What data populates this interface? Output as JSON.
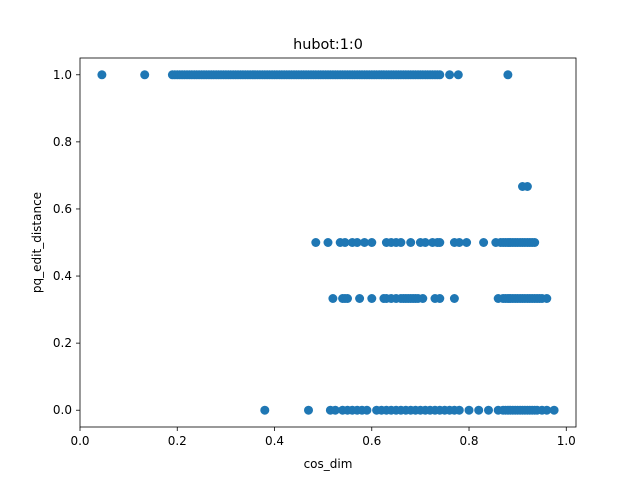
{
  "colors": {
    "marker": "#1f77b4",
    "axes": "#000000",
    "background": "#ffffff"
  },
  "chart_data": {
    "type": "scatter",
    "title": "hubot:1:0",
    "xlabel": "cos_dim",
    "ylabel": "pq_edit_distance",
    "xlim": [
      0.0,
      1.02
    ],
    "ylim": [
      -0.05,
      1.05
    ],
    "xticks": [
      0.0,
      0.2,
      0.4,
      0.6,
      0.8,
      1.0
    ],
    "xtick_labels": [
      "0.0",
      "0.2",
      "0.4",
      "0.6",
      "0.8",
      "1.0"
    ],
    "yticks": [
      0.0,
      0.2,
      0.4,
      0.6,
      0.8,
      1.0
    ],
    "ytick_labels": [
      "0.0",
      "0.2",
      "0.4",
      "0.6",
      "0.8",
      "1.0"
    ],
    "grid": false,
    "legend": "none",
    "series": [
      {
        "points": [
          [
            0.045,
            1.0
          ],
          [
            0.133,
            1.0
          ],
          [
            0.19,
            1.0
          ],
          [
            0.195,
            1.0
          ],
          [
            0.2,
            1.0
          ],
          [
            0.205,
            1.0
          ],
          [
            0.21,
            1.0
          ],
          [
            0.215,
            1.0
          ],
          [
            0.22,
            1.0
          ],
          [
            0.225,
            1.0
          ],
          [
            0.23,
            1.0
          ],
          [
            0.235,
            1.0
          ],
          [
            0.24,
            1.0
          ],
          [
            0.245,
            1.0
          ],
          [
            0.25,
            1.0
          ],
          [
            0.255,
            1.0
          ],
          [
            0.26,
            1.0
          ],
          [
            0.265,
            1.0
          ],
          [
            0.27,
            1.0
          ],
          [
            0.275,
            1.0
          ],
          [
            0.28,
            1.0
          ],
          [
            0.285,
            1.0
          ],
          [
            0.29,
            1.0
          ],
          [
            0.295,
            1.0
          ],
          [
            0.3,
            1.0
          ],
          [
            0.305,
            1.0
          ],
          [
            0.31,
            1.0
          ],
          [
            0.315,
            1.0
          ],
          [
            0.32,
            1.0
          ],
          [
            0.325,
            1.0
          ],
          [
            0.33,
            1.0
          ],
          [
            0.335,
            1.0
          ],
          [
            0.34,
            1.0
          ],
          [
            0.345,
            1.0
          ],
          [
            0.35,
            1.0
          ],
          [
            0.355,
            1.0
          ],
          [
            0.36,
            1.0
          ],
          [
            0.365,
            1.0
          ],
          [
            0.37,
            1.0
          ],
          [
            0.375,
            1.0
          ],
          [
            0.38,
            1.0
          ],
          [
            0.385,
            1.0
          ],
          [
            0.39,
            1.0
          ],
          [
            0.395,
            1.0
          ],
          [
            0.4,
            1.0
          ],
          [
            0.405,
            1.0
          ],
          [
            0.41,
            1.0
          ],
          [
            0.415,
            1.0
          ],
          [
            0.42,
            1.0
          ],
          [
            0.425,
            1.0
          ],
          [
            0.43,
            1.0
          ],
          [
            0.435,
            1.0
          ],
          [
            0.44,
            1.0
          ],
          [
            0.445,
            1.0
          ],
          [
            0.45,
            1.0
          ],
          [
            0.455,
            1.0
          ],
          [
            0.46,
            1.0
          ],
          [
            0.465,
            1.0
          ],
          [
            0.47,
            1.0
          ],
          [
            0.475,
            1.0
          ],
          [
            0.48,
            1.0
          ],
          [
            0.485,
            1.0
          ],
          [
            0.49,
            1.0
          ],
          [
            0.495,
            1.0
          ],
          [
            0.5,
            1.0
          ],
          [
            0.505,
            1.0
          ],
          [
            0.51,
            1.0
          ],
          [
            0.515,
            1.0
          ],
          [
            0.52,
            1.0
          ],
          [
            0.525,
            1.0
          ],
          [
            0.53,
            1.0
          ],
          [
            0.535,
            1.0
          ],
          [
            0.54,
            1.0
          ],
          [
            0.545,
            1.0
          ],
          [
            0.55,
            1.0
          ],
          [
            0.555,
            1.0
          ],
          [
            0.56,
            1.0
          ],
          [
            0.565,
            1.0
          ],
          [
            0.57,
            1.0
          ],
          [
            0.575,
            1.0
          ],
          [
            0.58,
            1.0
          ],
          [
            0.585,
            1.0
          ],
          [
            0.59,
            1.0
          ],
          [
            0.595,
            1.0
          ],
          [
            0.6,
            1.0
          ],
          [
            0.605,
            1.0
          ],
          [
            0.61,
            1.0
          ],
          [
            0.615,
            1.0
          ],
          [
            0.62,
            1.0
          ],
          [
            0.625,
            1.0
          ],
          [
            0.63,
            1.0
          ],
          [
            0.635,
            1.0
          ],
          [
            0.64,
            1.0
          ],
          [
            0.645,
            1.0
          ],
          [
            0.65,
            1.0
          ],
          [
            0.655,
            1.0
          ],
          [
            0.66,
            1.0
          ],
          [
            0.665,
            1.0
          ],
          [
            0.67,
            1.0
          ],
          [
            0.675,
            1.0
          ],
          [
            0.68,
            1.0
          ],
          [
            0.685,
            1.0
          ],
          [
            0.69,
            1.0
          ],
          [
            0.695,
            1.0
          ],
          [
            0.7,
            1.0
          ],
          [
            0.705,
            1.0
          ],
          [
            0.71,
            1.0
          ],
          [
            0.715,
            1.0
          ],
          [
            0.72,
            1.0
          ],
          [
            0.725,
            1.0
          ],
          [
            0.73,
            1.0
          ],
          [
            0.735,
            1.0
          ],
          [
            0.74,
            1.0
          ],
          [
            0.76,
            1.0
          ],
          [
            0.778,
            1.0
          ],
          [
            0.88,
            1.0
          ],
          [
            0.91,
            0.667
          ],
          [
            0.92,
            0.667
          ],
          [
            0.485,
            0.5
          ],
          [
            0.51,
            0.5
          ],
          [
            0.535,
            0.5
          ],
          [
            0.545,
            0.5
          ],
          [
            0.56,
            0.5
          ],
          [
            0.57,
            0.5
          ],
          [
            0.585,
            0.5
          ],
          [
            0.6,
            0.5
          ],
          [
            0.63,
            0.5
          ],
          [
            0.64,
            0.5
          ],
          [
            0.65,
            0.5
          ],
          [
            0.66,
            0.5
          ],
          [
            0.68,
            0.5
          ],
          [
            0.7,
            0.5
          ],
          [
            0.71,
            0.5
          ],
          [
            0.725,
            0.5
          ],
          [
            0.735,
            0.5
          ],
          [
            0.74,
            0.5
          ],
          [
            0.77,
            0.5
          ],
          [
            0.78,
            0.5
          ],
          [
            0.795,
            0.5
          ],
          [
            0.83,
            0.5
          ],
          [
            0.855,
            0.5
          ],
          [
            0.865,
            0.5
          ],
          [
            0.87,
            0.5
          ],
          [
            0.875,
            0.5
          ],
          [
            0.88,
            0.5
          ],
          [
            0.885,
            0.5
          ],
          [
            0.89,
            0.5
          ],
          [
            0.895,
            0.5
          ],
          [
            0.9,
            0.5
          ],
          [
            0.905,
            0.5
          ],
          [
            0.91,
            0.5
          ],
          [
            0.915,
            0.5
          ],
          [
            0.92,
            0.5
          ],
          [
            0.925,
            0.5
          ],
          [
            0.93,
            0.5
          ],
          [
            0.935,
            0.5
          ],
          [
            0.52,
            0.333
          ],
          [
            0.54,
            0.333
          ],
          [
            0.545,
            0.333
          ],
          [
            0.55,
            0.333
          ],
          [
            0.575,
            0.333
          ],
          [
            0.6,
            0.333
          ],
          [
            0.625,
            0.333
          ],
          [
            0.63,
            0.333
          ],
          [
            0.64,
            0.333
          ],
          [
            0.65,
            0.333
          ],
          [
            0.66,
            0.333
          ],
          [
            0.665,
            0.333
          ],
          [
            0.67,
            0.333
          ],
          [
            0.675,
            0.333
          ],
          [
            0.68,
            0.333
          ],
          [
            0.685,
            0.333
          ],
          [
            0.69,
            0.333
          ],
          [
            0.695,
            0.333
          ],
          [
            0.705,
            0.333
          ],
          [
            0.73,
            0.333
          ],
          [
            0.74,
            0.333
          ],
          [
            0.77,
            0.333
          ],
          [
            0.86,
            0.333
          ],
          [
            0.87,
            0.333
          ],
          [
            0.875,
            0.333
          ],
          [
            0.88,
            0.333
          ],
          [
            0.885,
            0.333
          ],
          [
            0.89,
            0.333
          ],
          [
            0.895,
            0.333
          ],
          [
            0.9,
            0.333
          ],
          [
            0.905,
            0.333
          ],
          [
            0.91,
            0.333
          ],
          [
            0.915,
            0.333
          ],
          [
            0.92,
            0.333
          ],
          [
            0.925,
            0.333
          ],
          [
            0.93,
            0.333
          ],
          [
            0.935,
            0.333
          ],
          [
            0.94,
            0.333
          ],
          [
            0.945,
            0.333
          ],
          [
            0.95,
            0.333
          ],
          [
            0.96,
            0.333
          ],
          [
            0.38,
            0.0
          ],
          [
            0.47,
            0.0
          ],
          [
            0.515,
            0.0
          ],
          [
            0.525,
            0.0
          ],
          [
            0.54,
            0.0
          ],
          [
            0.55,
            0.0
          ],
          [
            0.56,
            0.0
          ],
          [
            0.57,
            0.0
          ],
          [
            0.58,
            0.0
          ],
          [
            0.59,
            0.0
          ],
          [
            0.61,
            0.0
          ],
          [
            0.62,
            0.0
          ],
          [
            0.63,
            0.0
          ],
          [
            0.64,
            0.0
          ],
          [
            0.65,
            0.0
          ],
          [
            0.66,
            0.0
          ],
          [
            0.67,
            0.0
          ],
          [
            0.68,
            0.0
          ],
          [
            0.69,
            0.0
          ],
          [
            0.7,
            0.0
          ],
          [
            0.71,
            0.0
          ],
          [
            0.72,
            0.0
          ],
          [
            0.73,
            0.0
          ],
          [
            0.74,
            0.0
          ],
          [
            0.75,
            0.0
          ],
          [
            0.76,
            0.0
          ],
          [
            0.77,
            0.0
          ],
          [
            0.78,
            0.0
          ],
          [
            0.8,
            0.0
          ],
          [
            0.82,
            0.0
          ],
          [
            0.84,
            0.0
          ],
          [
            0.86,
            0.0
          ],
          [
            0.87,
            0.0
          ],
          [
            0.875,
            0.0
          ],
          [
            0.88,
            0.0
          ],
          [
            0.885,
            0.0
          ],
          [
            0.89,
            0.0
          ],
          [
            0.895,
            0.0
          ],
          [
            0.9,
            0.0
          ],
          [
            0.905,
            0.0
          ],
          [
            0.91,
            0.0
          ],
          [
            0.915,
            0.0
          ],
          [
            0.92,
            0.0
          ],
          [
            0.925,
            0.0
          ],
          [
            0.93,
            0.0
          ],
          [
            0.935,
            0.0
          ],
          [
            0.94,
            0.0
          ],
          [
            0.95,
            0.0
          ],
          [
            0.96,
            0.0
          ],
          [
            0.975,
            0.0
          ]
        ]
      }
    ]
  }
}
